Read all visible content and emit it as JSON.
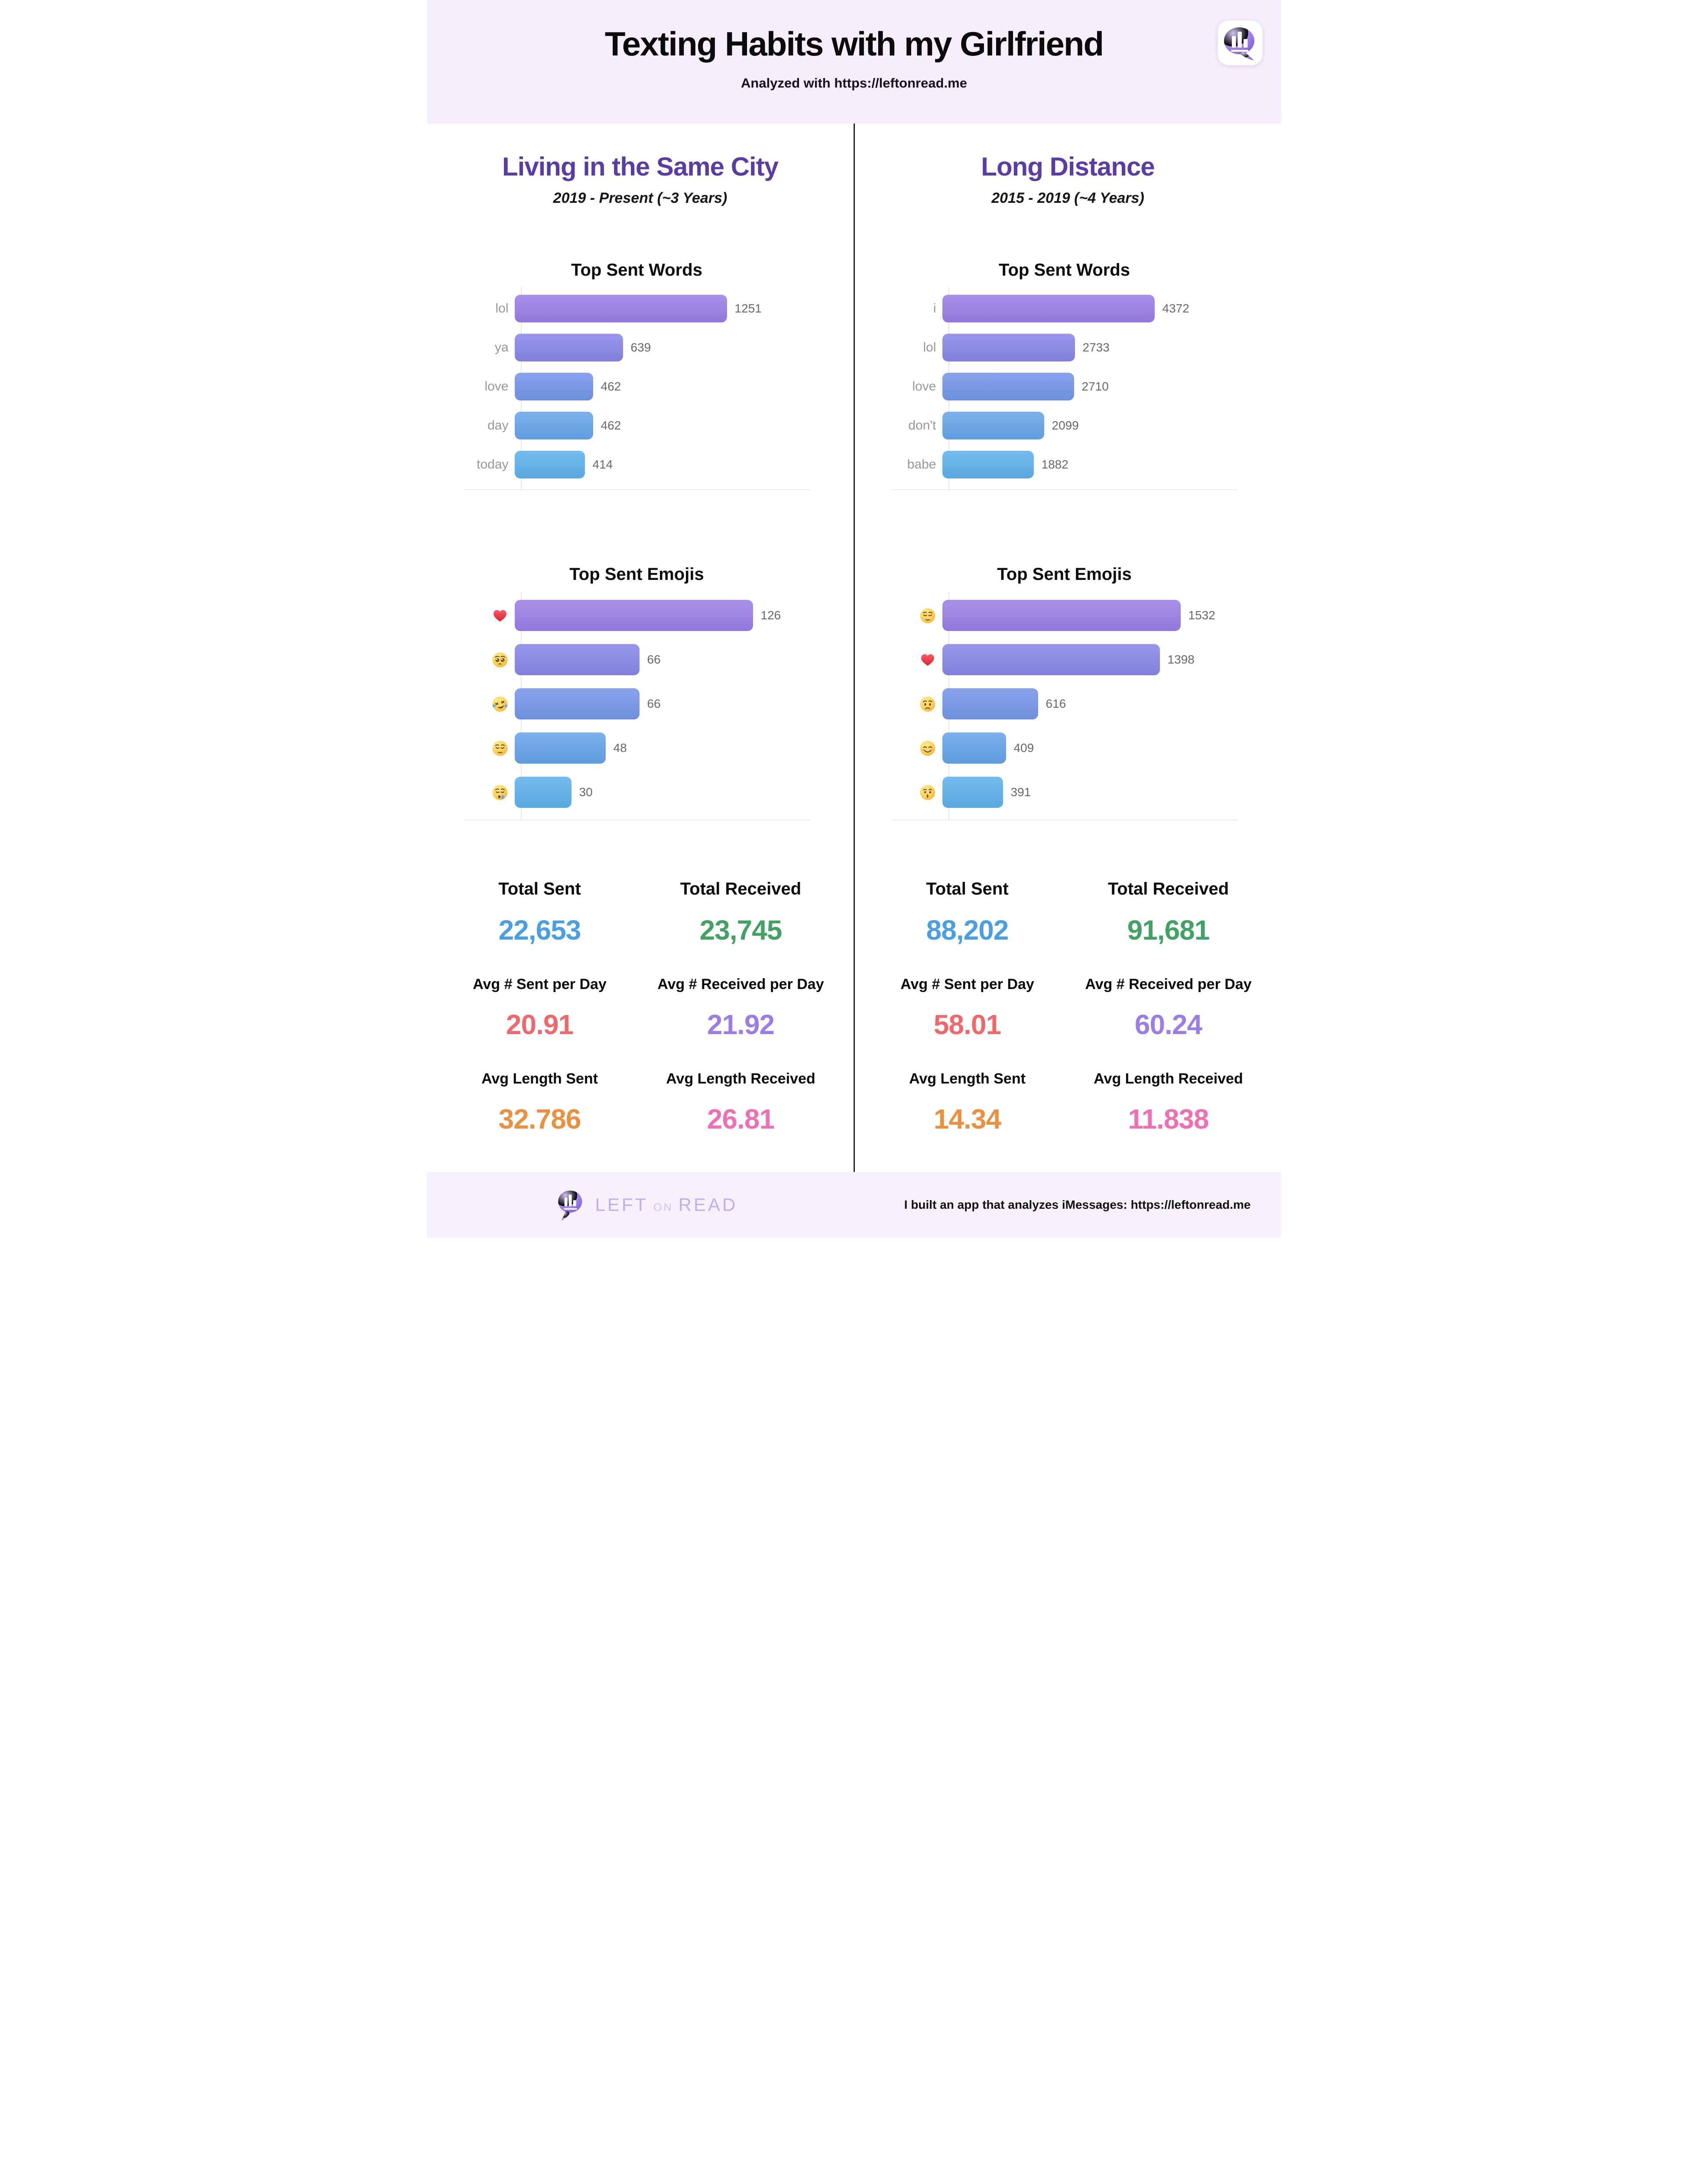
{
  "header": {
    "title": "Texting Habits with my Girlfriend",
    "analyzed_prefix": "Analyzed with ",
    "analyzed_link": "https://leftonread.me"
  },
  "chart_data": [
    {
      "type": "bar",
      "orientation": "horizontal",
      "column": "Living in the Same City",
      "title": "Top Sent Words",
      "categories": [
        "lol",
        "ya",
        "love",
        "day",
        "today"
      ],
      "values": [
        1251,
        639,
        462,
        462,
        414
      ],
      "value_labels": true,
      "grid": false
    },
    {
      "type": "bar",
      "orientation": "horizontal",
      "column": "Living in the Same City",
      "title": "Top Sent Emojis",
      "categories": [
        "❤️",
        "🥺",
        "🤣",
        "😔",
        "😪"
      ],
      "category_icons": [
        "red-heart",
        "pleading-face",
        "rofl-face",
        "pensive-face",
        "sleepy-face"
      ],
      "values": [
        126,
        66,
        66,
        48,
        30
      ],
      "value_labels": true,
      "grid": false
    },
    {
      "type": "bar",
      "orientation": "horizontal",
      "column": "Long Distance",
      "title": "Top Sent Words",
      "categories": [
        "i",
        "lol",
        "love",
        "don't",
        "babe"
      ],
      "values": [
        4372,
        2733,
        2710,
        2099,
        1882
      ],
      "value_labels": true,
      "grid": false
    },
    {
      "type": "bar",
      "orientation": "horizontal",
      "column": "Long Distance",
      "title": "Top Sent Emojis",
      "categories": [
        "😔",
        "❤️",
        "😟",
        "😊",
        "😗"
      ],
      "category_icons": [
        "pensive-face",
        "red-heart",
        "worried-face",
        "smiling-face",
        "kissing-face"
      ],
      "values": [
        1532,
        1398,
        616,
        409,
        391
      ],
      "value_labels": true,
      "grid": false
    }
  ],
  "columns": [
    {
      "title": "Living in the Same City",
      "subtitle": "2019 - Present (~3 Years)",
      "chart_refs": [
        0,
        1
      ],
      "stats": [
        {
          "label": "Total Sent",
          "value": "22,653",
          "color": "#4a9fe3"
        },
        {
          "label": "Total Received",
          "value": "23,745",
          "color": "#42a263"
        },
        {
          "label": "Avg # Sent per Day",
          "value": "20.91",
          "color": "#ef686b"
        },
        {
          "label": "Avg # Received per Day",
          "value": "21.92",
          "color": "#9c7ce7"
        },
        {
          "label": "Avg Length Sent",
          "value": "32.786",
          "color": "#e99140"
        },
        {
          "label": "Avg Length Received",
          "value": "26.81",
          "color": "#ef70b2"
        }
      ]
    },
    {
      "title": "Long Distance",
      "subtitle": "2015 - 2019 (~4 Years)",
      "chart_refs": [
        2,
        3
      ],
      "stats": [
        {
          "label": "Total Sent",
          "value": "88,202",
          "color": "#4a9fe3"
        },
        {
          "label": "Total Received",
          "value": "91,681",
          "color": "#42a263"
        },
        {
          "label": "Avg # Sent per Day",
          "value": "58.01",
          "color": "#ef686b"
        },
        {
          "label": "Avg # Received per Day",
          "value": "60.24",
          "color": "#9c7ce7"
        },
        {
          "label": "Avg Length Sent",
          "value": "14.34",
          "color": "#e99140"
        },
        {
          "label": "Avg Length Received",
          "value": "11.838",
          "color": "#ef70b2"
        }
      ]
    }
  ],
  "footer": {
    "brand_left": "LEFT",
    "brand_mid": "ON",
    "brand_right": "READ",
    "note_prefix": "I built an app that analyzes iMessages: ",
    "note_link": "https://leftonread.me"
  },
  "style": {
    "bar_colors": [
      "#9c7ee6",
      "#8787e7",
      "#7495e8",
      "#66a4e9",
      "#5eb1ec"
    ],
    "heading_color": "#5a3ca3",
    "header_bg": "#f6eefb",
    "footer_bg": "#f7f1fb",
    "divider_color": "#1e1e22"
  }
}
